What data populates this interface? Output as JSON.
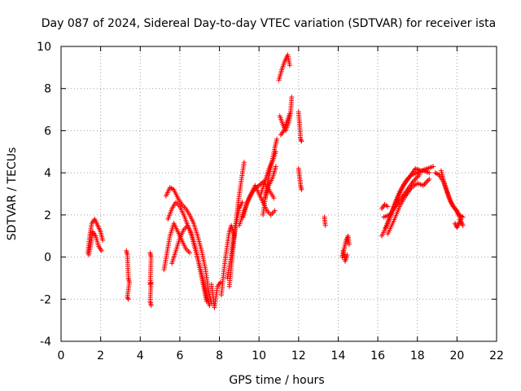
{
  "chart_data": {
    "type": "scatter",
    "title": "Day 087 of 2024, Sidereal Day-to-day VTEC variation (SDTVAR) for receiver ista",
    "xlabel": "GPS time / hours",
    "ylabel": "SDTVAR / TECUs",
    "xlim": [
      0,
      22
    ],
    "ylim": [
      -4,
      10
    ],
    "x_ticks": [
      0,
      2,
      4,
      6,
      8,
      10,
      12,
      14,
      16,
      18,
      20,
      22
    ],
    "y_ticks": [
      -4,
      -2,
      0,
      2,
      4,
      6,
      8,
      10
    ],
    "grid": true,
    "legend": "none",
    "marker": "+",
    "color": "#ff0000",
    "series": [
      {
        "name": "SDTVAR",
        "segments": [
          [
            [
              1.35,
              0.2
            ],
            [
              1.45,
              1.0
            ],
            [
              1.55,
              1.6
            ],
            [
              1.7,
              1.8
            ],
            [
              1.85,
              1.5
            ],
            [
              2.0,
              1.2
            ],
            [
              2.1,
              0.8
            ]
          ],
          [
            [
              1.4,
              0.1
            ],
            [
              1.5,
              0.6
            ],
            [
              1.6,
              1.2
            ],
            [
              1.75,
              1.0
            ],
            [
              1.9,
              0.5
            ],
            [
              2.05,
              0.3
            ]
          ],
          [
            [
              3.3,
              0.3
            ],
            [
              3.35,
              0.1
            ],
            [
              3.4,
              -1.0
            ],
            [
              3.45,
              -1.2
            ],
            [
              3.35,
              -1.9
            ],
            [
              3.4,
              -2.0
            ]
          ],
          [
            [
              4.5,
              0.2
            ],
            [
              4.55,
              0.0
            ],
            [
              4.5,
              -1.3
            ],
            [
              4.55,
              -1.2
            ],
            [
              4.5,
              -2.1
            ],
            [
              4.55,
              -2.3
            ]
          ],
          [
            [
              5.2,
              -0.6
            ],
            [
              5.35,
              0.2
            ],
            [
              5.5,
              1.0
            ],
            [
              5.7,
              1.6
            ],
            [
              5.9,
              1.2
            ],
            [
              6.1,
              0.8
            ],
            [
              6.3,
              0.4
            ],
            [
              6.5,
              0.2
            ]
          ],
          [
            [
              5.3,
              2.9
            ],
            [
              5.5,
              3.3
            ],
            [
              5.7,
              3.2
            ],
            [
              5.9,
              2.8
            ],
            [
              6.1,
              2.5
            ],
            [
              6.3,
              2.3
            ],
            [
              6.5,
              2.0
            ],
            [
              6.7,
              1.6
            ],
            [
              6.9,
              1.0
            ],
            [
              7.1,
              0.3
            ],
            [
              7.3,
              -0.6
            ],
            [
              7.45,
              -1.6
            ],
            [
              7.6,
              -2.2
            ]
          ],
          [
            [
              5.4,
              1.8
            ],
            [
              5.6,
              2.3
            ],
            [
              5.8,
              2.6
            ],
            [
              6.0,
              2.4
            ],
            [
              6.2,
              2.0
            ],
            [
              6.4,
              1.5
            ],
            [
              6.6,
              1.0
            ],
            [
              6.8,
              0.3
            ],
            [
              7.0,
              -0.4
            ],
            [
              7.2,
              -1.2
            ],
            [
              7.35,
              -1.9
            ],
            [
              7.5,
              -2.3
            ]
          ],
          [
            [
              5.6,
              -0.3
            ],
            [
              5.8,
              0.3
            ],
            [
              6.0,
              0.9
            ],
            [
              6.2,
              1.3
            ],
            [
              6.4,
              1.5
            ],
            [
              6.6,
              1.1
            ],
            [
              6.8,
              0.4
            ],
            [
              7.0,
              -0.5
            ],
            [
              7.2,
              -1.4
            ],
            [
              7.35,
              -2.1
            ]
          ],
          [
            [
              7.6,
              -1.3
            ],
            [
              7.75,
              -2.4
            ],
            [
              7.9,
              -1.4
            ],
            [
              8.05,
              -1.2
            ]
          ],
          [
            [
              8.1,
              -1.8
            ],
            [
              8.25,
              -0.4
            ],
            [
              8.4,
              0.6
            ],
            [
              8.5,
              1.2
            ],
            [
              8.6,
              1.5
            ],
            [
              8.75,
              1.0
            ]
          ],
          [
            [
              8.4,
              -1.0
            ],
            [
              8.55,
              -0.2
            ],
            [
              8.7,
              0.8
            ],
            [
              8.85,
              1.6
            ],
            [
              9.0,
              2.3
            ],
            [
              9.15,
              2.6
            ]
          ],
          [
            [
              8.5,
              -1.4
            ],
            [
              8.65,
              0.0
            ],
            [
              8.8,
              1.4
            ],
            [
              8.95,
              2.6
            ],
            [
              9.1,
              3.6
            ],
            [
              9.25,
              4.5
            ]
          ],
          [
            [
              9.0,
              1.5
            ],
            [
              9.25,
              2.2
            ],
            [
              9.5,
              2.8
            ],
            [
              9.75,
              3.2
            ],
            [
              10.0,
              3.4
            ],
            [
              10.25,
              3.6
            ],
            [
              10.5,
              3.2
            ],
            [
              10.75,
              2.8
            ]
          ],
          [
            [
              9.2,
              1.9
            ],
            [
              9.4,
              2.6
            ],
            [
              9.6,
              3.0
            ],
            [
              9.8,
              3.4
            ],
            [
              10.0,
              3.0
            ],
            [
              10.2,
              2.6
            ],
            [
              10.4,
              2.2
            ],
            [
              10.6,
              2.0
            ],
            [
              10.8,
              2.2
            ]
          ],
          [
            [
              10.2,
              2.0
            ],
            [
              10.35,
              3.0
            ],
            [
              10.5,
              3.8
            ],
            [
              10.65,
              4.5
            ],
            [
              10.8,
              5.2
            ],
            [
              10.9,
              5.6
            ]
          ],
          [
            [
              10.1,
              3.0
            ],
            [
              10.3,
              3.6
            ],
            [
              10.5,
              4.2
            ],
            [
              10.7,
              4.6
            ],
            [
              10.85,
              5.0
            ]
          ],
          [
            [
              10.3,
              2.8
            ],
            [
              10.5,
              3.4
            ],
            [
              10.7,
              3.8
            ],
            [
              10.85,
              4.3
            ]
          ],
          [
            [
              11.0,
              8.4
            ],
            [
              11.15,
              8.9
            ],
            [
              11.3,
              9.3
            ],
            [
              11.45,
              9.6
            ],
            [
              11.55,
              9.1
            ]
          ],
          [
            [
              11.05,
              6.7
            ],
            [
              11.2,
              6.3
            ],
            [
              11.35,
              6.0
            ],
            [
              11.5,
              6.4
            ],
            [
              11.6,
              6.9
            ],
            [
              11.65,
              7.6
            ]
          ],
          [
            [
              11.1,
              5.8
            ],
            [
              11.25,
              6.0
            ],
            [
              11.4,
              6.4
            ],
            [
              11.55,
              6.8
            ]
          ],
          [
            [
              12.0,
              6.9
            ],
            [
              12.05,
              6.3
            ],
            [
              12.1,
              5.6
            ],
            [
              12.15,
              5.5
            ]
          ],
          [
            [
              12.0,
              4.2
            ],
            [
              12.05,
              3.8
            ],
            [
              12.1,
              3.4
            ],
            [
              12.15,
              3.2
            ]
          ],
          [
            [
              13.3,
              1.9
            ],
            [
              13.35,
              1.5
            ]
          ],
          [
            [
              14.2,
              0.0
            ],
            [
              14.3,
              0.4
            ],
            [
              14.4,
              0.8
            ],
            [
              14.5,
              1.0
            ],
            [
              14.55,
              0.6
            ]
          ],
          [
            [
              14.25,
              0.3
            ],
            [
              14.35,
              -0.2
            ],
            [
              14.45,
              0.1
            ]
          ],
          [
            [
              16.2,
              2.3
            ],
            [
              16.35,
              2.5
            ],
            [
              16.5,
              2.4
            ]
          ],
          [
            [
              16.2,
              1.0
            ],
            [
              16.5,
              1.6
            ],
            [
              16.8,
              2.4
            ],
            [
              17.1,
              3.1
            ],
            [
              17.4,
              3.6
            ],
            [
              17.7,
              3.9
            ],
            [
              18.0,
              4.0
            ],
            [
              18.3,
              4.1
            ],
            [
              18.6,
              4.0
            ]
          ],
          [
            [
              16.4,
              1.4
            ],
            [
              16.7,
              2.1
            ],
            [
              17.0,
              2.8
            ],
            [
              17.3,
              3.4
            ],
            [
              17.6,
              3.8
            ],
            [
              17.9,
              4.2
            ],
            [
              18.2,
              4.1
            ],
            [
              18.5,
              4.2
            ],
            [
              18.8,
              4.3
            ]
          ],
          [
            [
              16.5,
              1.1
            ],
            [
              16.8,
              1.7
            ],
            [
              17.1,
              2.4
            ],
            [
              17.4,
              2.9
            ],
            [
              17.7,
              3.3
            ],
            [
              18.0,
              3.5
            ],
            [
              18.3,
              3.4
            ],
            [
              18.6,
              3.7
            ]
          ],
          [
            [
              16.3,
              1.9
            ],
            [
              16.6,
              2.0
            ],
            [
              16.9,
              2.4
            ],
            [
              17.2,
              2.8
            ],
            [
              17.5,
              3.2
            ],
            [
              17.8,
              3.6
            ],
            [
              18.1,
              3.9
            ]
          ],
          [
            [
              18.9,
              4.0
            ],
            [
              19.1,
              3.9
            ],
            [
              19.3,
              3.6
            ],
            [
              19.5,
              3.1
            ],
            [
              19.7,
              2.6
            ],
            [
              19.9,
              2.3
            ],
            [
              20.1,
              2.0
            ],
            [
              20.3,
              1.9
            ]
          ],
          [
            [
              19.2,
              4.1
            ],
            [
              19.4,
              3.4
            ],
            [
              19.6,
              2.8
            ],
            [
              19.8,
              2.4
            ],
            [
              20.0,
              2.2
            ],
            [
              20.2,
              1.7
            ],
            [
              20.3,
              1.5
            ]
          ],
          [
            [
              19.9,
              1.6
            ],
            [
              20.0,
              1.4
            ],
            [
              20.1,
              1.6
            ],
            [
              20.2,
              1.8
            ]
          ]
        ]
      }
    ]
  }
}
